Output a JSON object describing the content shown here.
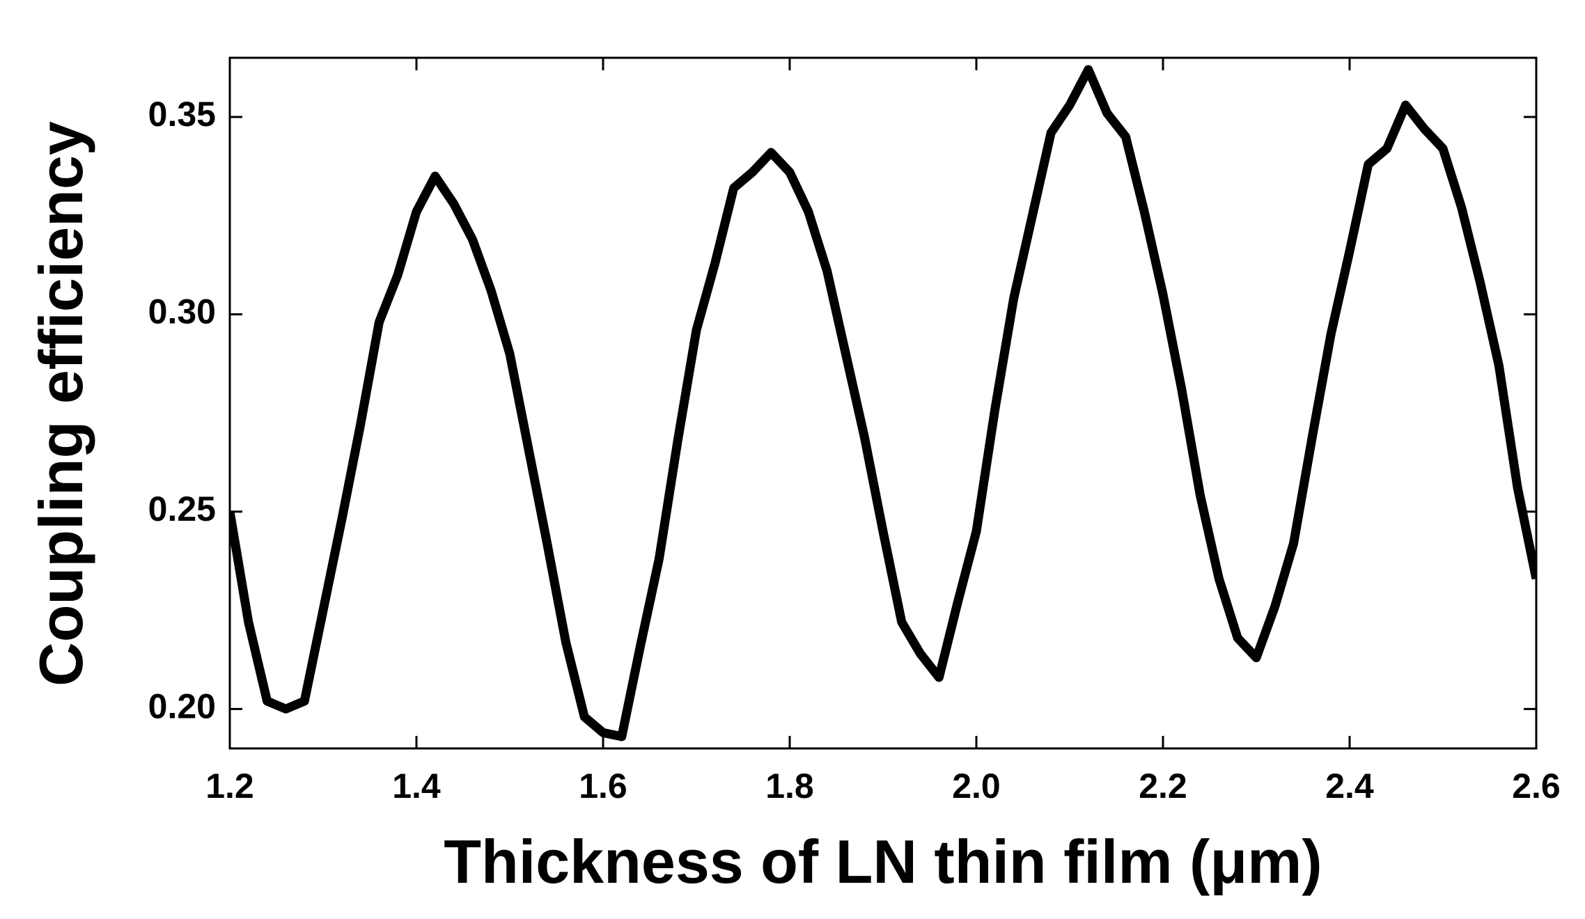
{
  "chart_data": {
    "type": "line",
    "x_label": "Thickness of LN thin film (μm)",
    "y_label": "Coupling efficiency",
    "xlim": [
      1.2,
      2.6
    ],
    "xticks": [
      1.2,
      1.4,
      1.6,
      1.8,
      {
        "value": 2,
        "label": "2.0"
      },
      2.2,
      2.4,
      2.6
    ],
    "ylim": [
      0.19,
      0.365
    ],
    "yticks": [
      {
        "value": 0.2,
        "label": "0.20"
      },
      0.25,
      {
        "value": 0.3,
        "label": "0.30"
      },
      0.35
    ],
    "grid": false,
    "x": [
      1.2,
      1.22,
      1.24,
      1.26,
      1.28,
      1.3,
      1.32,
      1.34,
      1.36,
      1.38,
      1.4,
      1.42,
      1.44,
      1.46,
      1.48,
      1.5,
      1.52,
      1.54,
      1.56,
      1.58,
      1.6,
      1.62,
      1.64,
      1.66,
      1.68,
      1.7,
      1.72,
      1.74,
      1.76,
      1.78,
      1.8,
      1.82,
      1.84,
      1.86,
      1.88,
      1.9,
      1.92,
      1.94,
      1.96,
      1.98,
      2.0,
      2.02,
      2.04,
      2.06,
      2.08,
      2.1,
      2.12,
      2.14,
      2.16,
      2.18,
      2.2,
      2.22,
      2.24,
      2.26,
      2.28,
      2.3,
      2.32,
      2.34,
      2.36,
      2.38,
      2.4,
      2.42,
      2.44,
      2.46,
      2.48,
      2.5,
      2.52,
      2.54,
      2.56,
      2.58,
      2.6
    ],
    "series": [
      {
        "name": "Coupling efficiency",
        "color": "#000000",
        "values": [
          0.25,
          0.222,
          0.202,
          0.2,
          0.202,
          0.225,
          0.248,
          0.272,
          0.298,
          0.31,
          0.326,
          0.335,
          0.328,
          0.319,
          0.306,
          0.29,
          0.266,
          0.242,
          0.217,
          0.198,
          0.194,
          0.193,
          0.216,
          0.238,
          0.268,
          0.296,
          0.313,
          0.332,
          0.336,
          0.341,
          0.336,
          0.326,
          0.311,
          0.29,
          0.269,
          0.245,
          0.222,
          0.214,
          0.208,
          0.227,
          0.245,
          0.276,
          0.304,
          0.325,
          0.346,
          0.353,
          0.362,
          0.351,
          0.345,
          0.326,
          0.305,
          0.281,
          0.254,
          0.233,
          0.218,
          0.213,
          0.226,
          0.242,
          0.269,
          0.295,
          0.316,
          0.338,
          0.342,
          0.353,
          0.347,
          0.342,
          0.327,
          0.308,
          0.287,
          0.256,
          0.233
        ]
      }
    ]
  }
}
